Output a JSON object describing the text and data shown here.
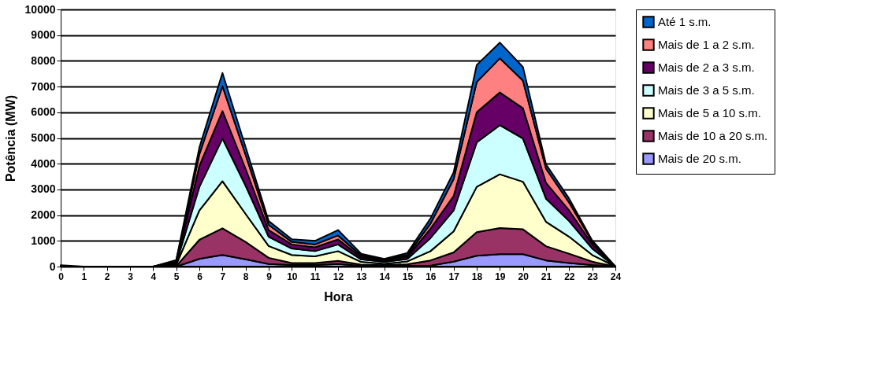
{
  "chart_data": {
    "type": "area",
    "stacked": true,
    "xlabel": "Hora",
    "ylabel": "Potência (MW)",
    "x": [
      0,
      1,
      2,
      3,
      4,
      5,
      6,
      7,
      8,
      9,
      10,
      11,
      12,
      13,
      14,
      15,
      16,
      17,
      18,
      19,
      20,
      21,
      22,
      23,
      24
    ],
    "xlim": [
      0,
      24
    ],
    "xticks": [
      0,
      1,
      2,
      3,
      4,
      5,
      6,
      7,
      8,
      9,
      10,
      11,
      12,
      13,
      14,
      15,
      16,
      17,
      18,
      19,
      20,
      21,
      22,
      23,
      24
    ],
    "ylim": [
      0,
      10000
    ],
    "yticks": [
      0,
      1000,
      2000,
      3000,
      4000,
      5000,
      6000,
      7000,
      8000,
      9000,
      10000
    ],
    "grid": "y",
    "legend": "right",
    "series": [
      {
        "name": "Mais de 20 s.m.",
        "color": "#9999ff",
        "values": [
          0,
          0,
          0,
          0,
          0,
          0,
          300,
          450,
          280,
          100,
          60,
          60,
          100,
          30,
          20,
          30,
          40,
          190,
          420,
          480,
          480,
          240,
          140,
          60,
          0
        ]
      },
      {
        "name": "Mais de 10 a 20 s.m.",
        "color": "#993366",
        "values": [
          0,
          0,
          0,
          0,
          0,
          20,
          740,
          1040,
          680,
          240,
          80,
          80,
          120,
          50,
          30,
          60,
          200,
          360,
          920,
          1020,
          970,
          550,
          360,
          130,
          0
        ]
      },
      {
        "name": "Mais de 5 a 10 s.m.",
        "color": "#ffffcc",
        "values": [
          0,
          0,
          0,
          0,
          0,
          50,
          1140,
          1830,
          1090,
          460,
          310,
          260,
          380,
          100,
          60,
          110,
          360,
          820,
          1760,
          2090,
          1850,
          950,
          660,
          260,
          0
        ]
      },
      {
        "name": "Mais de 3 a 5 s.m.",
        "color": "#ccffff",
        "values": [
          0,
          0,
          0,
          0,
          0,
          60,
          920,
          1660,
          1100,
          360,
          250,
          200,
          260,
          100,
          70,
          100,
          510,
          810,
          1730,
          1910,
          1680,
          900,
          610,
          250,
          0
        ]
      },
      {
        "name": "Mais de 2 a 3 s.m.",
        "color": "#660066",
        "values": [
          0,
          0,
          0,
          0,
          0,
          40,
          810,
          1070,
          650,
          260,
          160,
          150,
          200,
          80,
          50,
          80,
          360,
          560,
          1170,
          1270,
          1180,
          610,
          410,
          160,
          0
        ]
      },
      {
        "name": "Mais de 1 a 2 s.m.",
        "color": "#ff8080",
        "values": [
          0,
          0,
          0,
          0,
          0,
          50,
          460,
          970,
          550,
          200,
          100,
          110,
          150,
          70,
          40,
          70,
          200,
          660,
          1180,
          1330,
          1070,
          560,
          310,
          100,
          0
        ]
      },
      {
        "name": "Até 1 s.m.",
        "color": "#0066cc",
        "values": [
          50,
          0,
          0,
          0,
          0,
          30,
          260,
          510,
          300,
          150,
          100,
          140,
          210,
          70,
          30,
          80,
          200,
          260,
          660,
          610,
          530,
          160,
          150,
          50,
          0
        ]
      }
    ]
  }
}
